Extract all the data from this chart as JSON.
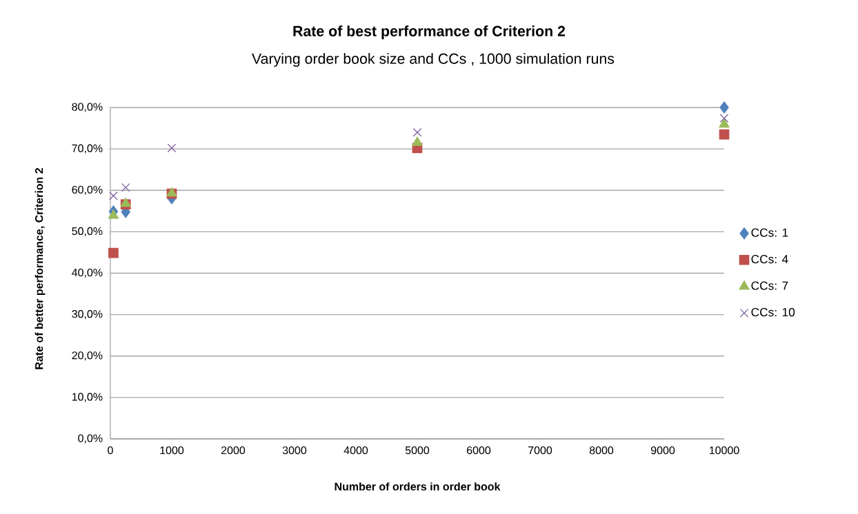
{
  "chart_data": {
    "type": "scatter",
    "title": "Rate of best performance of Criterion 2",
    "subtitle": "Varying order book size and CCs , 1000 simulation runs",
    "xlabel": "Number of orders in order book",
    "ylabel": "Rate of better performance, Criterion 2",
    "x": [
      50,
      250,
      1000,
      5000,
      10000
    ],
    "series": [
      {
        "name": "CCs: 1",
        "color": "#4f81bd",
        "marker": "diamond",
        "values": [
          54.9,
          54.8,
          58.1,
          null,
          80.0
        ]
      },
      {
        "name": "CCs: 4",
        "color": "#c0504d",
        "marker": "square",
        "values": [
          44.9,
          56.6,
          59.2,
          70.2,
          73.5
        ]
      },
      {
        "name": "CCs: 7",
        "color": "#9bbb59",
        "marker": "triangle",
        "values": [
          53.9,
          56.8,
          59.3,
          71.5,
          75.9
        ]
      },
      {
        "name": "CCs: 10",
        "color": "#8064a2",
        "marker": "cross",
        "values": [
          58.7,
          60.7,
          70.2,
          74.0,
          77.4
        ]
      }
    ],
    "xlim": [
      0,
      10000
    ],
    "xticks": [
      0,
      1000,
      2000,
      3000,
      4000,
      5000,
      6000,
      7000,
      8000,
      9000,
      10000
    ],
    "ylim": [
      0,
      80
    ],
    "yticks": [
      {
        "value": 0,
        "label": "0,0%"
      },
      {
        "value": 10,
        "label": "10,0%"
      },
      {
        "value": 20,
        "label": "20,0%"
      },
      {
        "value": 30,
        "label": "30,0%"
      },
      {
        "value": 40,
        "label": "40,0%"
      },
      {
        "value": 50,
        "label": "50,0%"
      },
      {
        "value": 60,
        "label": "60,0%"
      },
      {
        "value": 70,
        "label": "70,0%"
      },
      {
        "value": 80,
        "label": "80,0%"
      }
    ],
    "grid": "y",
    "legend": "right"
  }
}
